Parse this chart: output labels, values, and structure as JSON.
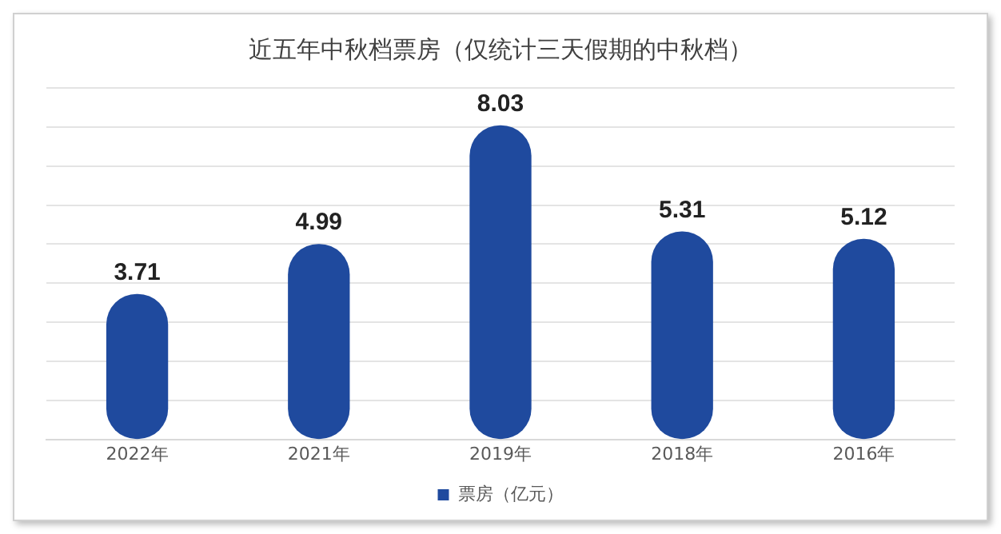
{
  "chart_data": {
    "type": "bar",
    "title": "近五年中秋档票房（仅统计三天假期的中秋档）",
    "categories": [
      "2022年",
      "2021年",
      "2019年",
      "2018年",
      "2016年"
    ],
    "series": [
      {
        "name": "票房（亿元）",
        "color": "#1f4a9e",
        "values": [
          3.71,
          4.99,
          8.03,
          5.31,
          5.12
        ]
      }
    ],
    "ylim": [
      0,
      9
    ],
    "yticks": [
      {
        "value": 0,
        "label": null
      },
      {
        "value": 1,
        "label": null
      },
      {
        "value": 2,
        "label": null
      },
      {
        "value": 3,
        "label": null
      },
      {
        "value": 4,
        "label": null
      },
      {
        "value": 5,
        "label": null
      },
      {
        "value": 6,
        "label": null
      },
      {
        "value": 7,
        "label": null
      },
      {
        "value": 8,
        "label": null
      },
      {
        "value": 9,
        "label": null
      }
    ],
    "grid": "y",
    "tick_labels": "x",
    "legend": "bottom",
    "data_labels": true
  }
}
